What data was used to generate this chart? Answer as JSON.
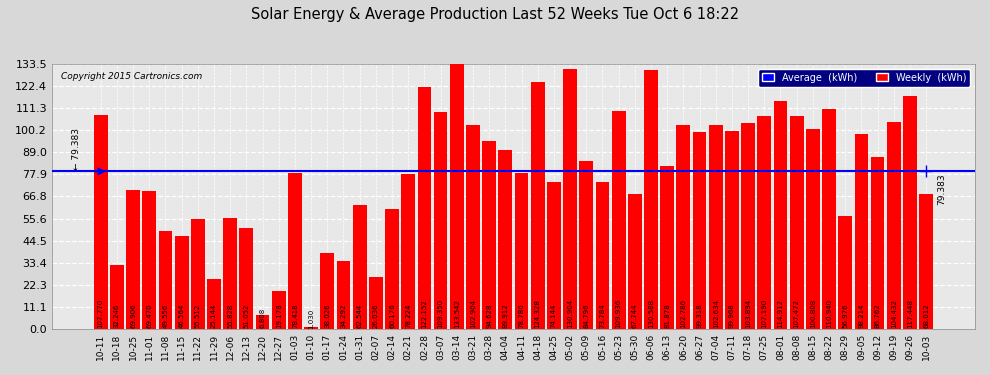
{
  "title": "Solar Energy & Average Production Last 52 Weeks Tue Oct 6 18:22",
  "copyright": "Copyright 2015 Cartronics.com",
  "average_line": 79.383,
  "bar_color": "#ff0000",
  "bg_color": "#d8d8d8",
  "plot_bg_color": "#e8e8e8",
  "ylim_max": 133.5,
  "yticks": [
    0.0,
    11.1,
    22.3,
    33.4,
    44.5,
    55.6,
    66.8,
    77.9,
    89.0,
    100.2,
    111.3,
    122.4,
    133.5
  ],
  "categories": [
    "10-11",
    "10-18",
    "10-25",
    "11-01",
    "11-08",
    "11-15",
    "11-22",
    "11-29",
    "12-06",
    "12-13",
    "12-20",
    "12-27",
    "01-03",
    "01-10",
    "01-17",
    "01-24",
    "01-31",
    "02-07",
    "02-14",
    "02-21",
    "02-28",
    "03-07",
    "03-14",
    "03-21",
    "03-28",
    "04-04",
    "04-11",
    "04-18",
    "04-25",
    "05-02",
    "05-09",
    "05-16",
    "05-23",
    "05-30",
    "06-06",
    "06-13",
    "06-20",
    "06-27",
    "07-04",
    "07-11",
    "07-18",
    "07-25",
    "08-01",
    "08-08",
    "08-15",
    "08-22",
    "08-29",
    "09-05",
    "09-12",
    "09-19",
    "09-26",
    "10-03"
  ],
  "values": [
    107.77,
    32.246,
    69.906,
    69.47,
    49.556,
    46.564,
    55.512,
    25.144,
    55.828,
    51.052,
    6.808,
    19.178,
    78.418,
    1.03,
    38.026,
    34.292,
    62.544,
    26.036,
    60.176,
    78.224,
    122.152,
    109.35,
    133.542,
    102.904,
    94.628,
    89.912,
    78.78,
    124.328,
    74.144,
    130.904,
    84.796,
    73.784,
    109.936,
    67.744,
    130.588,
    81.878,
    102.786,
    99.318,
    102.634,
    99.968,
    103.894,
    107.19,
    114.912,
    107.472,
    100.808,
    110.94,
    56.976,
    98.214,
    86.762,
    104.432,
    117.448,
    68.012
  ],
  "value_labels": [
    "107.770",
    "32.246",
    "69.906",
    "69.470",
    "49.556",
    "46.564",
    "55.512",
    "25.144",
    "55.828",
    "51.052",
    "6.808",
    "19.178",
    "78.418",
    "1.030",
    "38.026",
    "34.292",
    "62.544",
    "26.036",
    "60.176",
    "78.224",
    "122.152",
    "109.350",
    "133.542",
    "102.904",
    "94.628",
    "89.912",
    "78.780",
    "124.328",
    "74.144",
    "130.904",
    "84.796",
    "73.784",
    "109.936",
    "67.744",
    "130.588",
    "81.878",
    "102.786",
    "99.318",
    "102.634",
    "99.968",
    "103.894",
    "107.190",
    "114.912",
    "107.472",
    "100.808",
    "110.940",
    "56.976",
    "98.214",
    "86.762",
    "104.432",
    "117.448",
    "68.012"
  ]
}
